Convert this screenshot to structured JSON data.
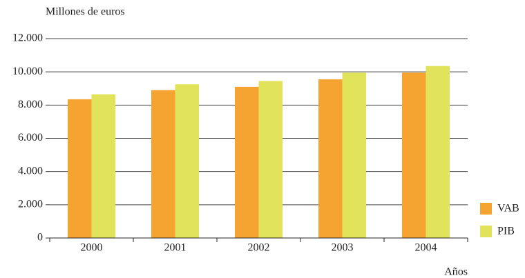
{
  "chart_data": {
    "type": "bar",
    "title": "Millones de euros",
    "x_label": "Años",
    "categories": [
      "2000",
      "2001",
      "2002",
      "2003",
      "2004"
    ],
    "series": [
      {
        "name": "VAB",
        "color": "#f6a431",
        "values": [
          8350,
          8900,
          9100,
          9550,
          9950
        ]
      },
      {
        "name": "PIB",
        "color": "#e1e35b",
        "values": [
          8650,
          9250,
          9450,
          9950,
          10350
        ]
      }
    ],
    "ylim": [
      0,
      12000
    ],
    "yticks": [
      0,
      {
        "value": 2000,
        "label": "2.000"
      },
      {
        "value": 4000,
        "label": "4.000"
      },
      {
        "value": 6000,
        "label": "6.000"
      },
      {
        "value": 8000,
        "label": "8.000"
      },
      {
        "value": 10000,
        "label": "10.000"
      },
      {
        "value": 12000,
        "label": "12.000"
      }
    ],
    "grid": true,
    "legend": "bottom-right"
  }
}
